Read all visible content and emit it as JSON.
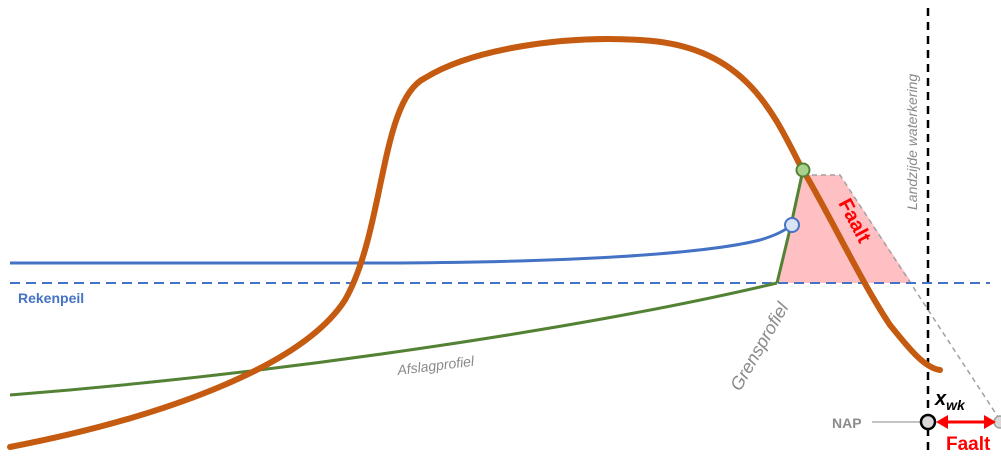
{
  "colors": {
    "dune": "#c55a11",
    "water": "#4472c4",
    "profile": "#548235",
    "failure_fill": "#ffc0c4",
    "failure_text": "#ff0000",
    "green_point": "#a9d18e",
    "blue_point": "#dae3f3",
    "grey": "#8a8a8a"
  },
  "labels": {
    "rekenpeil": "Rekenpeil",
    "afslagprofiel": "Afslagprofiel",
    "grensprofiel": "Grensprofiel",
    "faalt_area": "Faalt",
    "landzijde": "Landzijde waterkering",
    "nap": "NAP",
    "x_main": "x",
    "x_sub": "wk",
    "faalt_arrow": "Faalt"
  }
}
